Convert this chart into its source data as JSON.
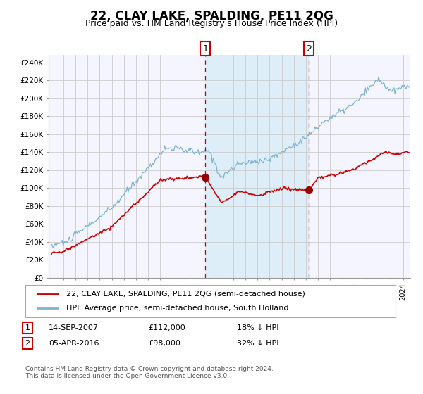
{
  "title": "22, CLAY LAKE, SPALDING, PE11 2QG",
  "subtitle": "Price paid vs. HM Land Registry's House Price Index (HPI)",
  "title_fontsize": 12,
  "subtitle_fontsize": 9,
  "ylabel_ticks": [
    "£0",
    "£20K",
    "£40K",
    "£60K",
    "£80K",
    "£100K",
    "£120K",
    "£140K",
    "£160K",
    "£180K",
    "£200K",
    "£220K",
    "£240K"
  ],
  "ytick_vals": [
    0,
    20000,
    40000,
    60000,
    80000,
    100000,
    120000,
    140000,
    160000,
    180000,
    200000,
    220000,
    240000
  ],
  "ylim": [
    0,
    248000
  ],
  "xstart_year": 1995,
  "xend_year": 2024,
  "purchase1_date": "14-SEP-2007",
  "purchase1_price": 112000,
  "purchase1_year": 2007.71,
  "purchase1_label": "1",
  "purchase1_pct": "18%",
  "purchase2_date": "05-APR-2016",
  "purchase2_price": 98000,
  "purchase2_year": 2016.25,
  "purchase2_label": "2",
  "purchase2_pct": "32%",
  "legend1": "22, CLAY LAKE, SPALDING, PE11 2QG (semi-detached house)",
  "legend2": "HPI: Average price, semi-detached house, South Holland",
  "red_line_color": "#cc0000",
  "blue_line_color": "#7fb3d3",
  "blue_fill_color": "#deeef8",
  "bg_color": "#f5f5ff",
  "grid_color": "#cccccc",
  "marker_color": "#990000",
  "footnote": "Contains HM Land Registry data © Crown copyright and database right 2024.\nThis data is licensed under the Open Government Licence v3.0."
}
